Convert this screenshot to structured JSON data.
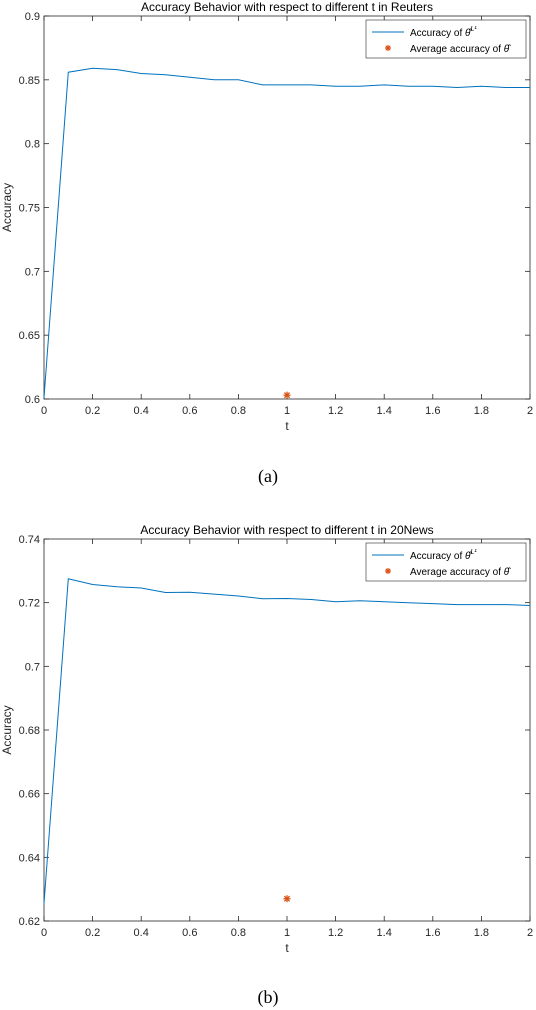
{
  "chart_data": [
    {
      "type": "line",
      "title": "Accuracy Behavior with respect to different t in Reuters",
      "xlabel": "t",
      "ylabel": "Accuracy",
      "xlim": [
        0,
        2
      ],
      "ylim": [
        0.6,
        0.9
      ],
      "xticks": [
        0,
        0.2,
        0.4,
        0.6,
        0.8,
        1,
        1.2,
        1.4,
        1.6,
        1.8,
        2
      ],
      "xtick_labels": [
        "0",
        "0.2",
        "0.4",
        "0.6",
        "0.8",
        "1",
        "1.2",
        "1.4",
        "1.6",
        "1.8",
        "2"
      ],
      "yticks": [
        0.6,
        0.65,
        0.7,
        0.75,
        0.8,
        0.85,
        0.9
      ],
      "ytick_labels": [
        "0.6",
        "0.65",
        "0.7",
        "0.75",
        "0.8",
        "0.85",
        "0.9"
      ],
      "grid": false,
      "legend_position": "top-right",
      "series": [
        {
          "name": "Accuracy of θ̂^{L¹}",
          "legend_text": "Accuracy of ",
          "legend_symbol": "θ̂",
          "legend_sup": "L¹",
          "color": "#0072BD",
          "x": [
            0,
            0.1,
            0.2,
            0.3,
            0.4,
            0.5,
            0.6,
            0.7,
            0.8,
            0.9,
            1.0,
            1.1,
            1.2,
            1.3,
            1.4,
            1.5,
            1.6,
            1.7,
            1.8,
            1.9,
            2.0
          ],
          "y": [
            0.601,
            0.856,
            0.859,
            0.858,
            0.855,
            0.854,
            0.852,
            0.85,
            0.85,
            0.846,
            0.846,
            0.846,
            0.845,
            0.845,
            0.846,
            0.845,
            0.845,
            0.844,
            0.845,
            0.844,
            0.844
          ]
        },
        {
          "name": "Average accuracy of θ̂",
          "legend_text": "Average accuracy of ",
          "legend_symbol": "θ̂",
          "color": "#D95319",
          "marker": "*",
          "x": [
            1
          ],
          "y": [
            0.603
          ]
        }
      ],
      "caption": "(a)"
    },
    {
      "type": "line",
      "title": "Accuracy Behavior with respect to different t in 20News",
      "xlabel": "t",
      "ylabel": "Accuracy",
      "xlim": [
        0,
        2
      ],
      "ylim": [
        0.62,
        0.74
      ],
      "xticks": [
        0,
        0.2,
        0.4,
        0.6,
        0.8,
        1,
        1.2,
        1.4,
        1.6,
        1.8,
        2
      ],
      "xtick_labels": [
        "0",
        "0.2",
        "0.4",
        "0.6",
        "0.8",
        "1",
        "1.2",
        "1.4",
        "1.6",
        "1.8",
        "2"
      ],
      "yticks": [
        0.62,
        0.64,
        0.66,
        0.68,
        0.7,
        0.72,
        0.74
      ],
      "ytick_labels": [
        "0.62",
        "0.64",
        "0.66",
        "0.68",
        "0.7",
        "0.72",
        "0.74"
      ],
      "grid": false,
      "legend_position": "top-right",
      "series": [
        {
          "name": "Accuracy of θ̂^{L¹}",
          "legend_text": "Accuracy of ",
          "legend_symbol": "θ̂",
          "legend_sup": "L¹",
          "color": "#0072BD",
          "x": [
            0,
            0.1,
            0.2,
            0.3,
            0.4,
            0.5,
            0.6,
            0.7,
            0.8,
            0.9,
            1.0,
            1.1,
            1.2,
            1.3,
            1.4,
            1.5,
            1.6,
            1.7,
            1.8,
            1.9,
            2.0
          ],
          "y": [
            0.6255,
            0.7275,
            0.7257,
            0.725,
            0.7246,
            0.7232,
            0.7233,
            0.7227,
            0.7221,
            0.7212,
            0.7213,
            0.721,
            0.7203,
            0.7206,
            0.7203,
            0.72,
            0.7197,
            0.7194,
            0.7194,
            0.7194,
            0.7191
          ]
        },
        {
          "name": "Average accuracy of θ̂",
          "legend_text": "Average accuracy of ",
          "legend_symbol": "θ̂",
          "color": "#D95319",
          "marker": "*",
          "x": [
            1
          ],
          "y": [
            0.627
          ]
        }
      ],
      "caption": "(b)"
    }
  ]
}
